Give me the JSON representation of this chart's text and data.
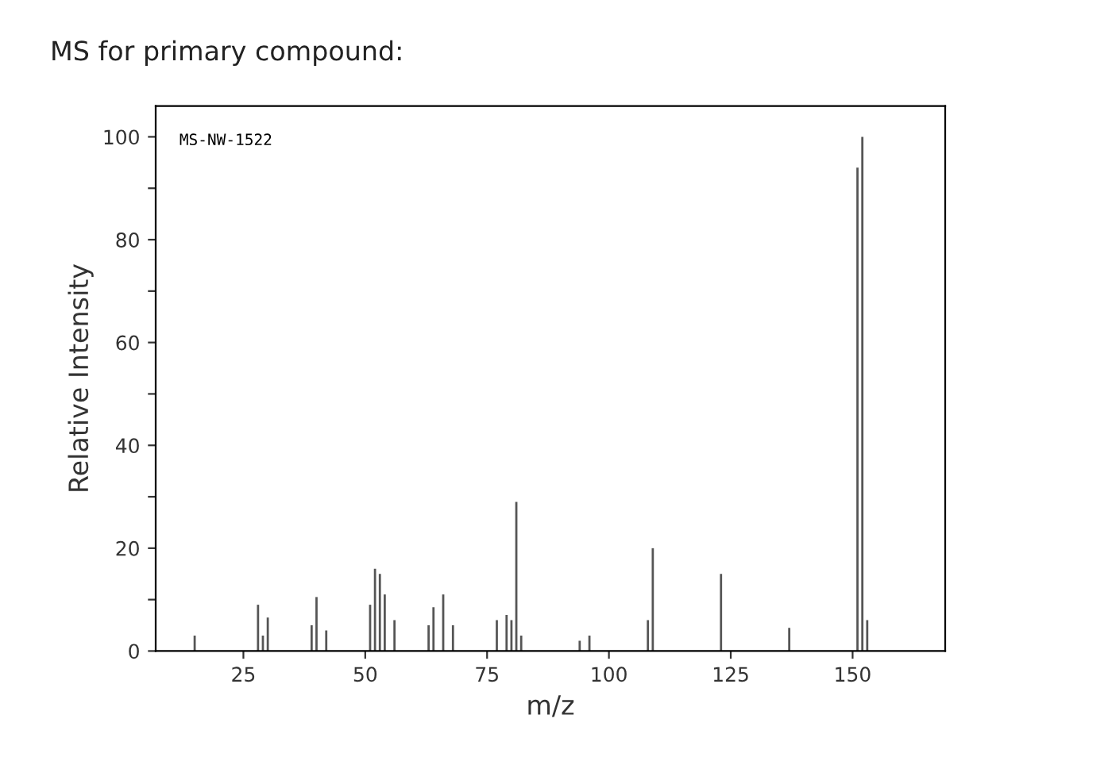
{
  "chart_data": {
    "type": "bar",
    "title": "MS for primary compound:",
    "xlabel": "m/z",
    "ylabel": "Relative Intensity",
    "annotations": [
      "MS-NW-1522"
    ],
    "x": [
      15,
      28,
      29,
      30,
      39,
      40,
      42,
      51,
      52,
      53,
      54,
      56,
      63,
      64,
      66,
      68,
      77,
      79,
      80,
      81,
      82,
      94,
      96,
      108,
      109,
      123,
      137,
      151,
      152,
      153
    ],
    "values": [
      3,
      9,
      3,
      6.5,
      5,
      10.5,
      4,
      9,
      16,
      15,
      11,
      6,
      5,
      8.5,
      11,
      5,
      6,
      7,
      6,
      29,
      3,
      2,
      3,
      6,
      20,
      15,
      4.5,
      94,
      100,
      6
    ],
    "color": "#555555",
    "xlim": [
      7,
      169
    ],
    "ylim": [
      0,
      106
    ],
    "xticks": [
      25,
      50,
      75,
      100,
      125,
      150
    ],
    "yticks": [
      0,
      {
        "value": 10,
        "label": null
      },
      20,
      {
        "value": 30,
        "label": null
      },
      40,
      {
        "value": 50,
        "label": null
      },
      60,
      {
        "value": 70,
        "label": null
      },
      80,
      {
        "value": 90,
        "label": null
      },
      100
    ],
    "grid": false
  }
}
